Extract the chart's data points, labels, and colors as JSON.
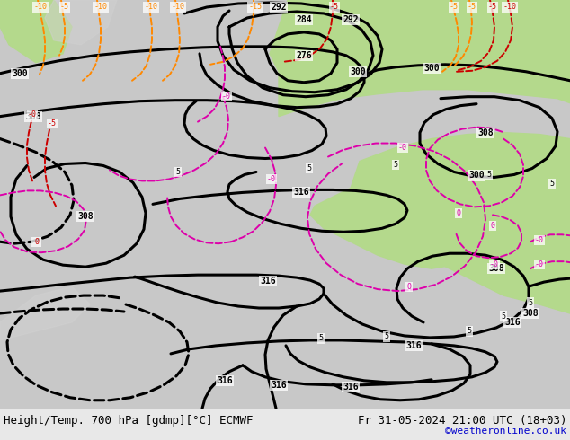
{
  "title_left": "Height/Temp. 700 hPa [gdmp][°C] ECMWF",
  "title_right": "Fr 31-05-2024 21:00 UTC (18+03)",
  "credit": "©weatheronline.co.uk",
  "bg_color": "#c8c8c8",
  "land_green": "#b4d98c",
  "land_gray": "#d0d0d0",
  "sea_color": "#c8c8c8",
  "figsize": [
    6.34,
    4.9
  ],
  "dpi": 100,
  "bottom_bar_color": "#e8e8e8",
  "font_family": "monospace",
  "title_fontsize": 9,
  "credit_fontsize": 8,
  "credit_color": "#0000cc",
  "geopot_color": "#000000",
  "geopot_lw": 2.2,
  "temp_red": "#cc0000",
  "temp_orange": "#ff8800",
  "temp_pink": "#dd00aa",
  "temp_lw": 1.4
}
